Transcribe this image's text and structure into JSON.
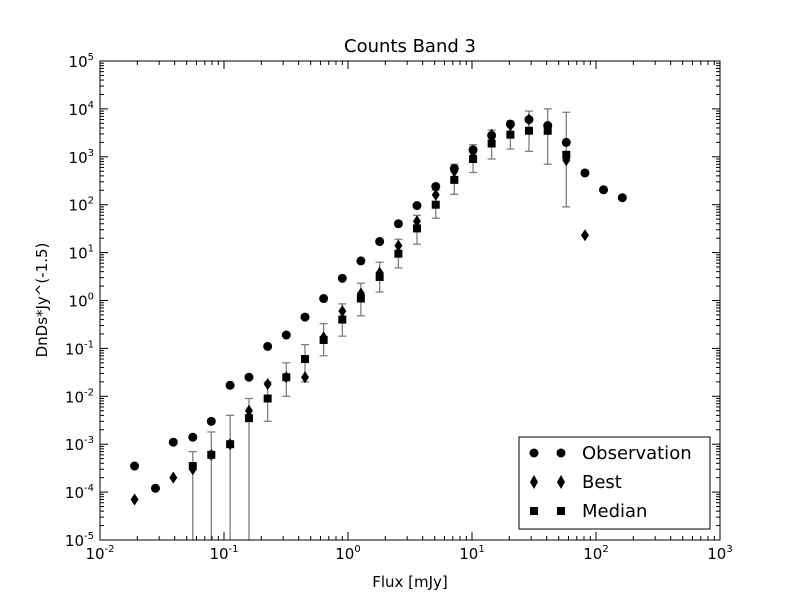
{
  "chart_data": {
    "type": "scatter",
    "title": "Counts Band 3",
    "xlabel": "Flux [mJy]",
    "ylabel": "DnDs*Jy^(-1.5)",
    "xscale": "log",
    "yscale": "log",
    "xlim": [
      0.01,
      1000
    ],
    "ylim": [
      1e-05,
      100000
    ],
    "x_ticks": [
      {
        "base": "10",
        "exp": "-2"
      },
      {
        "base": "10",
        "exp": "-1"
      },
      {
        "base": "10",
        "exp": "0"
      },
      {
        "base": "10",
        "exp": "1"
      },
      {
        "base": "10",
        "exp": "2"
      },
      {
        "base": "10",
        "exp": "3"
      }
    ],
    "y_ticks": [
      {
        "base": "10",
        "exp": "-5"
      },
      {
        "base": "10",
        "exp": "-4"
      },
      {
        "base": "10",
        "exp": "-3"
      },
      {
        "base": "10",
        "exp": "-2"
      },
      {
        "base": "10",
        "exp": "-1"
      },
      {
        "base": "10",
        "exp": "0"
      },
      {
        "base": "10",
        "exp": "1"
      },
      {
        "base": "10",
        "exp": "2"
      },
      {
        "base": "10",
        "exp": "3"
      },
      {
        "base": "10",
        "exp": "4"
      },
      {
        "base": "10",
        "exp": "5"
      }
    ],
    "grid": false,
    "legend_position": "lower-right",
    "series": [
      {
        "name": "Observation",
        "marker": "circle",
        "color": "#000000",
        "x": [
          0.019,
          0.028,
          0.039,
          0.056,
          0.079,
          0.112,
          0.159,
          0.225,
          0.318,
          0.45,
          0.636,
          0.9,
          1.27,
          1.8,
          2.55,
          3.6,
          5.1,
          7.2,
          10.2,
          14.4,
          20.4,
          28.8,
          40.8,
          57.6,
          81.5,
          115,
          163
        ],
        "y": [
          0.00035,
          0.00012,
          0.0011,
          0.0014,
          0.003,
          0.017,
          0.025,
          0.11,
          0.19,
          0.45,
          1.1,
          2.9,
          6.7,
          17,
          40,
          96,
          240,
          570,
          1400,
          2800,
          4800,
          6000,
          4500,
          2000,
          460,
          205,
          140
        ]
      },
      {
        "name": "Best",
        "marker": "diamond",
        "color": "#000000",
        "x": [
          0.019,
          0.039,
          0.056,
          0.079,
          0.112,
          0.159,
          0.225,
          0.318,
          0.45,
          0.636,
          0.9,
          1.27,
          1.8,
          2.55,
          3.6,
          5.1,
          7.2,
          10.2,
          14.4,
          20.4,
          28.8,
          40.8,
          57.6,
          81.5
        ],
        "y": [
          7e-05,
          0.0002,
          0.0003,
          0.0006,
          0.001,
          0.005,
          0.018,
          0.025,
          0.025,
          0.17,
          0.6,
          1.4,
          3.8,
          14,
          45,
          160,
          500,
          1250,
          2900,
          4500,
          6000,
          4200,
          850,
          23
        ]
      },
      {
        "name": "Median",
        "marker": "square",
        "color": "#000000",
        "x": [
          0.056,
          0.079,
          0.112,
          0.159,
          0.225,
          0.318,
          0.45,
          0.636,
          0.9,
          1.27,
          1.8,
          2.55,
          3.6,
          5.1,
          7.2,
          10.2,
          14.4,
          20.4,
          28.8,
          40.8,
          57.6
        ],
        "y": [
          0.00035,
          0.0006,
          0.001,
          0.0035,
          0.009,
          0.025,
          0.06,
          0.15,
          0.4,
          1.1,
          3.1,
          9.5,
          32,
          100,
          330,
          900,
          1900,
          2900,
          3500,
          3500,
          1100
        ],
        "yerr_low": [
          1e-05,
          1e-05,
          1e-05,
          1e-05,
          0.003,
          0.01,
          0.02,
          0.07,
          0.18,
          0.48,
          1.5,
          4.8,
          15,
          52,
          165,
          470,
          900,
          1450,
          1300,
          700,
          90
        ],
        "yerr_high": [
          0.0007,
          0.0018,
          0.004,
          0.009,
          0.02,
          0.05,
          0.12,
          0.33,
          0.85,
          2.3,
          6.3,
          19,
          60,
          200,
          700,
          1800,
          3600,
          5600,
          9000,
          10000,
          8500
        ],
        "error_color": "#7f7f7f"
      }
    ]
  }
}
